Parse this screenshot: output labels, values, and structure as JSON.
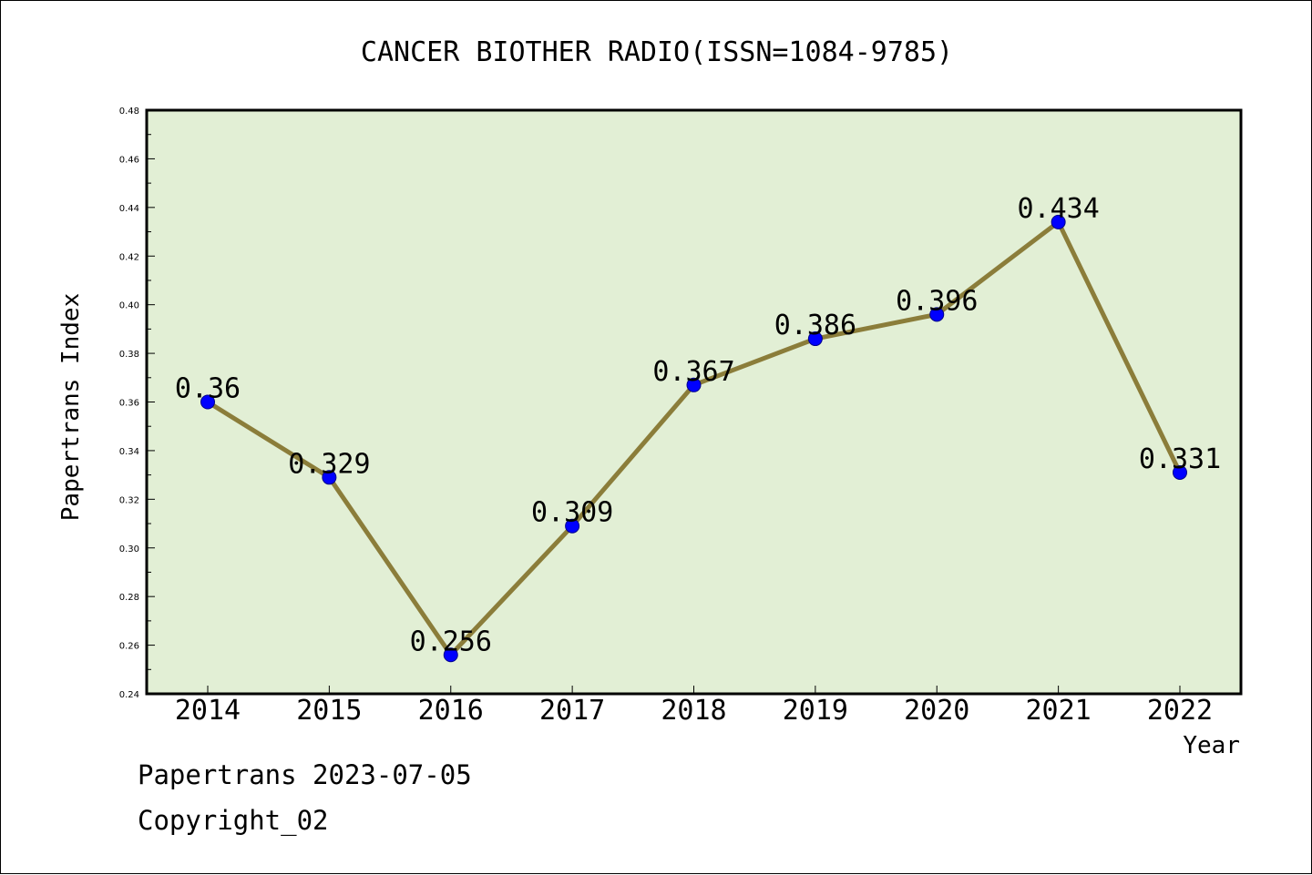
{
  "chart_data": {
    "type": "line",
    "title": "CANCER BIOTHER RADIO(ISSN=1084-9785)",
    "xlabel": "Year",
    "ylabel": "Papertrans Index",
    "categories": [
      "2014",
      "2015",
      "2016",
      "2017",
      "2018",
      "2019",
      "2020",
      "2021",
      "2022"
    ],
    "values": [
      0.36,
      0.329,
      0.256,
      0.309,
      0.367,
      0.386,
      0.396,
      0.434,
      0.331
    ],
    "data_labels": [
      "0.36",
      "0.329",
      "0.256",
      "0.309",
      "0.367",
      "0.386",
      "0.396",
      "0.434",
      "0.331"
    ],
    "ylim": [
      0.24,
      0.48
    ],
    "y_ticks": [
      "0.24",
      "0.26",
      "0.28",
      "0.30",
      "0.32",
      "0.34",
      "0.36",
      "0.38",
      "0.40",
      "0.42",
      "0.44",
      "0.46",
      "0.48"
    ],
    "grid": false,
    "colors": {
      "plot_background": "#e2efd5",
      "line": "#8b7d3a",
      "marker": "#0000ff"
    }
  },
  "footer": {
    "line1": "Papertrans 2023-07-05",
    "line2": "Copyright_02"
  }
}
